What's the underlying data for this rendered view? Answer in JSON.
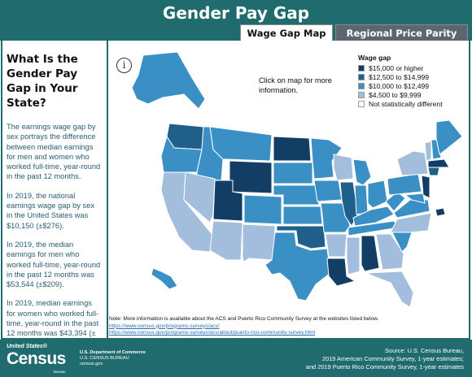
{
  "header": {
    "title": "Gender Pay Gap",
    "tabs": [
      {
        "label": "Wage Gap Map",
        "active": true
      },
      {
        "label": "Regional Price Parity Map",
        "active": false
      }
    ]
  },
  "sidebar": {
    "heading": "What Is the Gender Pay Gap in Your State?",
    "paragraphs": [
      "The earnings wage gap by sex portrays the difference between median earnings for men and women who worked full-time, year-round in the past 12 months.",
      "In 2019, the national earnings wage gap by sex in the United States was $10,150 (±$276).",
      "In 2019, the median earnings for men who worked full-time, year-round in the past 12 months was $53,544 (±$209).",
      "In 2019, median earnings for women who worked full-time, year-round in the past 12 months was $43,394 (±$181)."
    ]
  },
  "map": {
    "info_icon": "info-icon",
    "hint": "Click on map for more information.",
    "legend": {
      "title": "Wage gap",
      "items": [
        {
          "label": "$15,000 or higher",
          "color": "#123e66"
        },
        {
          "label": "$12,500 to $14,999",
          "color": "#1f5f8a"
        },
        {
          "label": "$10,000 to $12,499",
          "color": "#3a8fc4"
        },
        {
          "label": "$4,500 to $9,999",
          "color": "#a3bedc"
        },
        {
          "label": "Not statistically different",
          "color": "#ffffff"
        }
      ]
    }
  },
  "note": {
    "text": "Note: More information is available about the ACS and Puerto Rico Community Survey at the websites listed below.",
    "links": [
      "https://www.census.gov/programs-surveys/acs/",
      "https://www.census.gov/programs-surveys/acs/about/puerto-rico-community-survey.html"
    ]
  },
  "footer": {
    "logo_top": "United States®",
    "logo_main": "Census",
    "logo_bottom": "Bureau",
    "dept_line1": "U.S. Department of Commerce",
    "dept_line2": "U.S. CENSUS BUREAU",
    "dept_line3": "census.gov",
    "source_lines": [
      "Source: U.S. Census Bureau,",
      "2019 American Community Survey, 1-year estimates;",
      "and 2019 Puerto Rico Community Survey, 1-year estimates"
    ]
  },
  "colors": {
    "brand": "#1f6b6e",
    "tab_inactive": "#5b6670",
    "link": "#2a6fb0"
  }
}
